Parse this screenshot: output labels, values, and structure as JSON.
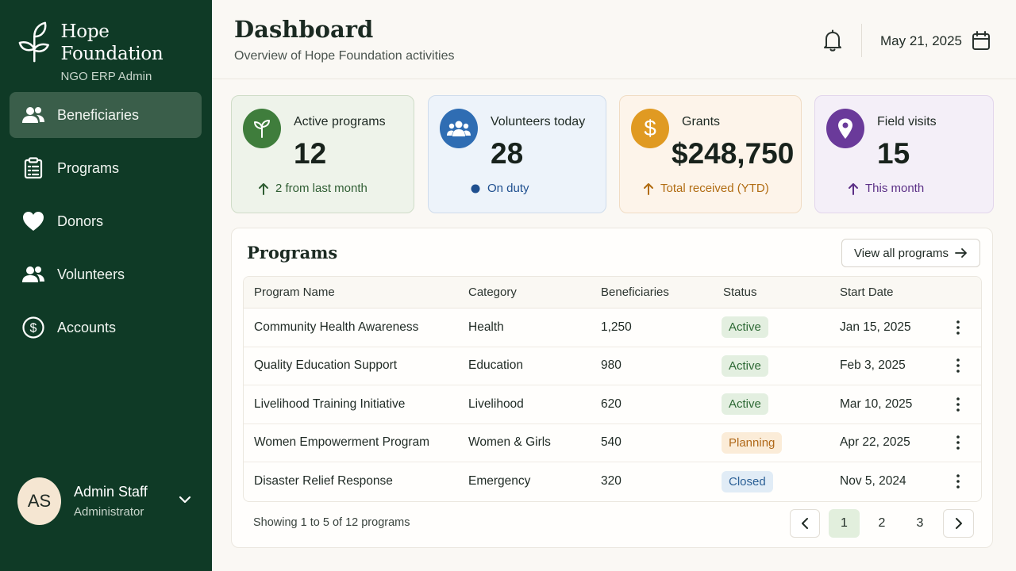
{
  "sidebar": {
    "brand_title": "Hope Foundation",
    "brand_subtitle": "NGO ERP Admin",
    "items": [
      {
        "label": "Beneficiaries",
        "icon": "users-icon",
        "active": true
      },
      {
        "label": "Programs",
        "icon": "clipboard-icon",
        "active": false
      },
      {
        "label": "Donors",
        "icon": "heart-icon",
        "active": false
      },
      {
        "label": "Volunteers",
        "icon": "users-icon",
        "active": false
      },
      {
        "label": "Accounts",
        "icon": "dollar-circle-icon",
        "active": false
      }
    ],
    "user": {
      "initials": "AS",
      "name": "Admin Staff",
      "role": "Administrator"
    }
  },
  "header": {
    "title": "Dashboard",
    "subtitle": "Overview of Hope Foundation activities",
    "date": "May 21, 2025"
  },
  "cards": [
    {
      "label": "Active programs",
      "value": "12",
      "foot": "2 from last month",
      "icon": "sprout-icon",
      "accent": "#3f7d3c",
      "bg": "#eef3ea",
      "border": "#cfdcc8",
      "foot_color": "#2f5d33",
      "foot_icon": "arrow-up-icon"
    },
    {
      "label": "Volunteers today",
      "value": "28",
      "foot": "On duty",
      "icon": "group-icon",
      "accent": "#2f6db3",
      "bg": "#edf3fa",
      "border": "#cfdcec",
      "foot_color": "#1f4f8f",
      "foot_icon": "dot-icon"
    },
    {
      "label": "Grants",
      "value": "$248,750",
      "foot": "Total received (YTD)",
      "icon": "dollar-icon",
      "accent": "#e09a22",
      "bg": "#fdf4ea",
      "border": "#f0dcc4",
      "foot_color": "#b16c12",
      "foot_icon": "arrow-up-icon"
    },
    {
      "label": "Field visits",
      "value": "15",
      "foot": "This month",
      "icon": "map-pin-icon",
      "accent": "#6a3a9a",
      "bg": "#f4eff8",
      "border": "#e2d6ec",
      "foot_color": "#5b2f86",
      "foot_icon": "arrow-up-icon"
    }
  ],
  "programs": {
    "title": "Programs",
    "view_all_label": "View all programs",
    "columns": [
      "Program Name",
      "Category",
      "Beneficiaries",
      "Status",
      "Start Date"
    ],
    "rows": [
      {
        "name": "Community Health Awareness",
        "category": "Health",
        "beneficiaries": "1,250",
        "status": "Active",
        "start": "Jan 15, 2025"
      },
      {
        "name": "Quality Education Support",
        "category": "Education",
        "beneficiaries": "980",
        "status": "Active",
        "start": "Feb 3, 2025"
      },
      {
        "name": "Livelihood Training Initiative",
        "category": "Livelihood",
        "beneficiaries": "620",
        "status": "Active",
        "start": "Mar 10, 2025"
      },
      {
        "name": "Women Empowerment Program",
        "category": "Women & Girls",
        "beneficiaries": "540",
        "status": "Planning",
        "start": "Apr 22, 2025"
      },
      {
        "name": "Disaster Relief Response",
        "category": "Emergency",
        "beneficiaries": "320",
        "status": "Closed",
        "start": "Nov 5, 2024"
      }
    ],
    "status_colors": {
      "Active": {
        "bg": "#e3efe0",
        "fg": "#2e6a35"
      },
      "Planning": {
        "bg": "#fbecd8",
        "fg": "#b0691a"
      },
      "Closed": {
        "bg": "#e1ecf6",
        "fg": "#2a5f95"
      }
    },
    "showing": "Showing 1 to 5 of 12 programs",
    "pages": [
      "1",
      "2",
      "3"
    ],
    "current_page": "1"
  }
}
